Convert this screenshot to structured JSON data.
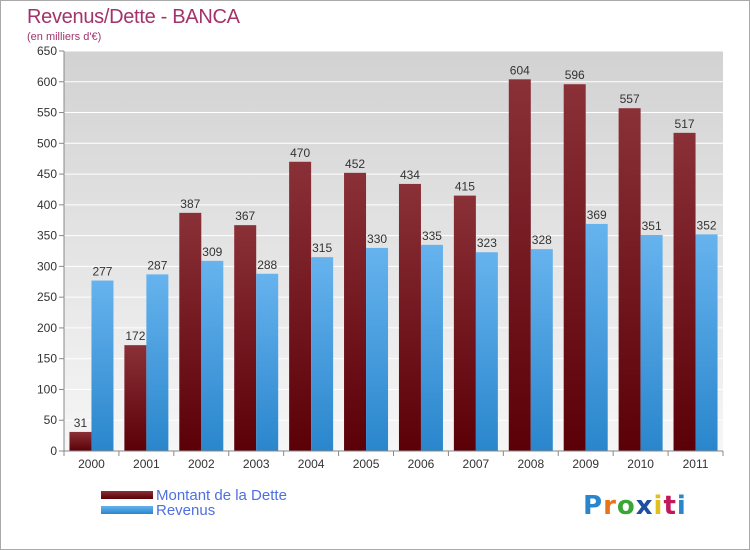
{
  "title": "Revenus/Dette - BANCA",
  "subtitle": "(en milliers d'€)",
  "logo_text": "Proxiti",
  "colors": {
    "title": "#a2336b",
    "debt_top": "#8a3037",
    "debt_bottom": "#5c0008",
    "revenue_top": "#66b3ee",
    "revenue_bottom": "#2a86cc",
    "plot_bg_top": "#d2d2d2",
    "plot_bg_bottom": "#f6f6f6",
    "legend_text": "#4d6fe0"
  },
  "chart_data": {
    "type": "bar",
    "title": "Revenus/Dette - BANCA",
    "subtitle": "(en milliers d'€)",
    "categories": [
      "2000",
      "2001",
      "2002",
      "2003",
      "2004",
      "2005",
      "2006",
      "2007",
      "2008",
      "2009",
      "2010",
      "2011"
    ],
    "series": [
      {
        "name": "Montant de la Dette",
        "values": [
          31,
          172,
          387,
          367,
          470,
          452,
          434,
          415,
          604,
          596,
          557,
          517
        ]
      },
      {
        "name": "Revenus",
        "values": [
          277,
          287,
          309,
          288,
          315,
          330,
          335,
          323,
          328,
          369,
          351,
          352
        ]
      }
    ],
    "ylim": [
      0,
      650
    ],
    "yticks": [
      0,
      50,
      100,
      150,
      200,
      250,
      300,
      350,
      400,
      450,
      500,
      550,
      600,
      650
    ],
    "grid": true,
    "legend": "bottom-left"
  }
}
